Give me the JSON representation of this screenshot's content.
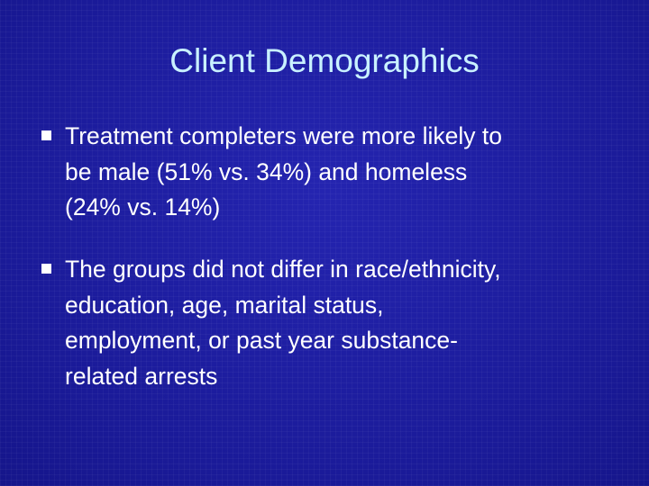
{
  "header": {
    "title": "Client Demographics"
  },
  "bullets": [
    {
      "lines": [
        "Treatment completers were more likely to",
        "be male (51% vs. 34%) and homeless",
        "(24% vs. 14%)"
      ]
    },
    {
      "lines": [
        "The groups did not differ in race/ethnicity,",
        "education, age, marital status,",
        "employment, or past year substance-",
        "related arrests"
      ]
    }
  ]
}
